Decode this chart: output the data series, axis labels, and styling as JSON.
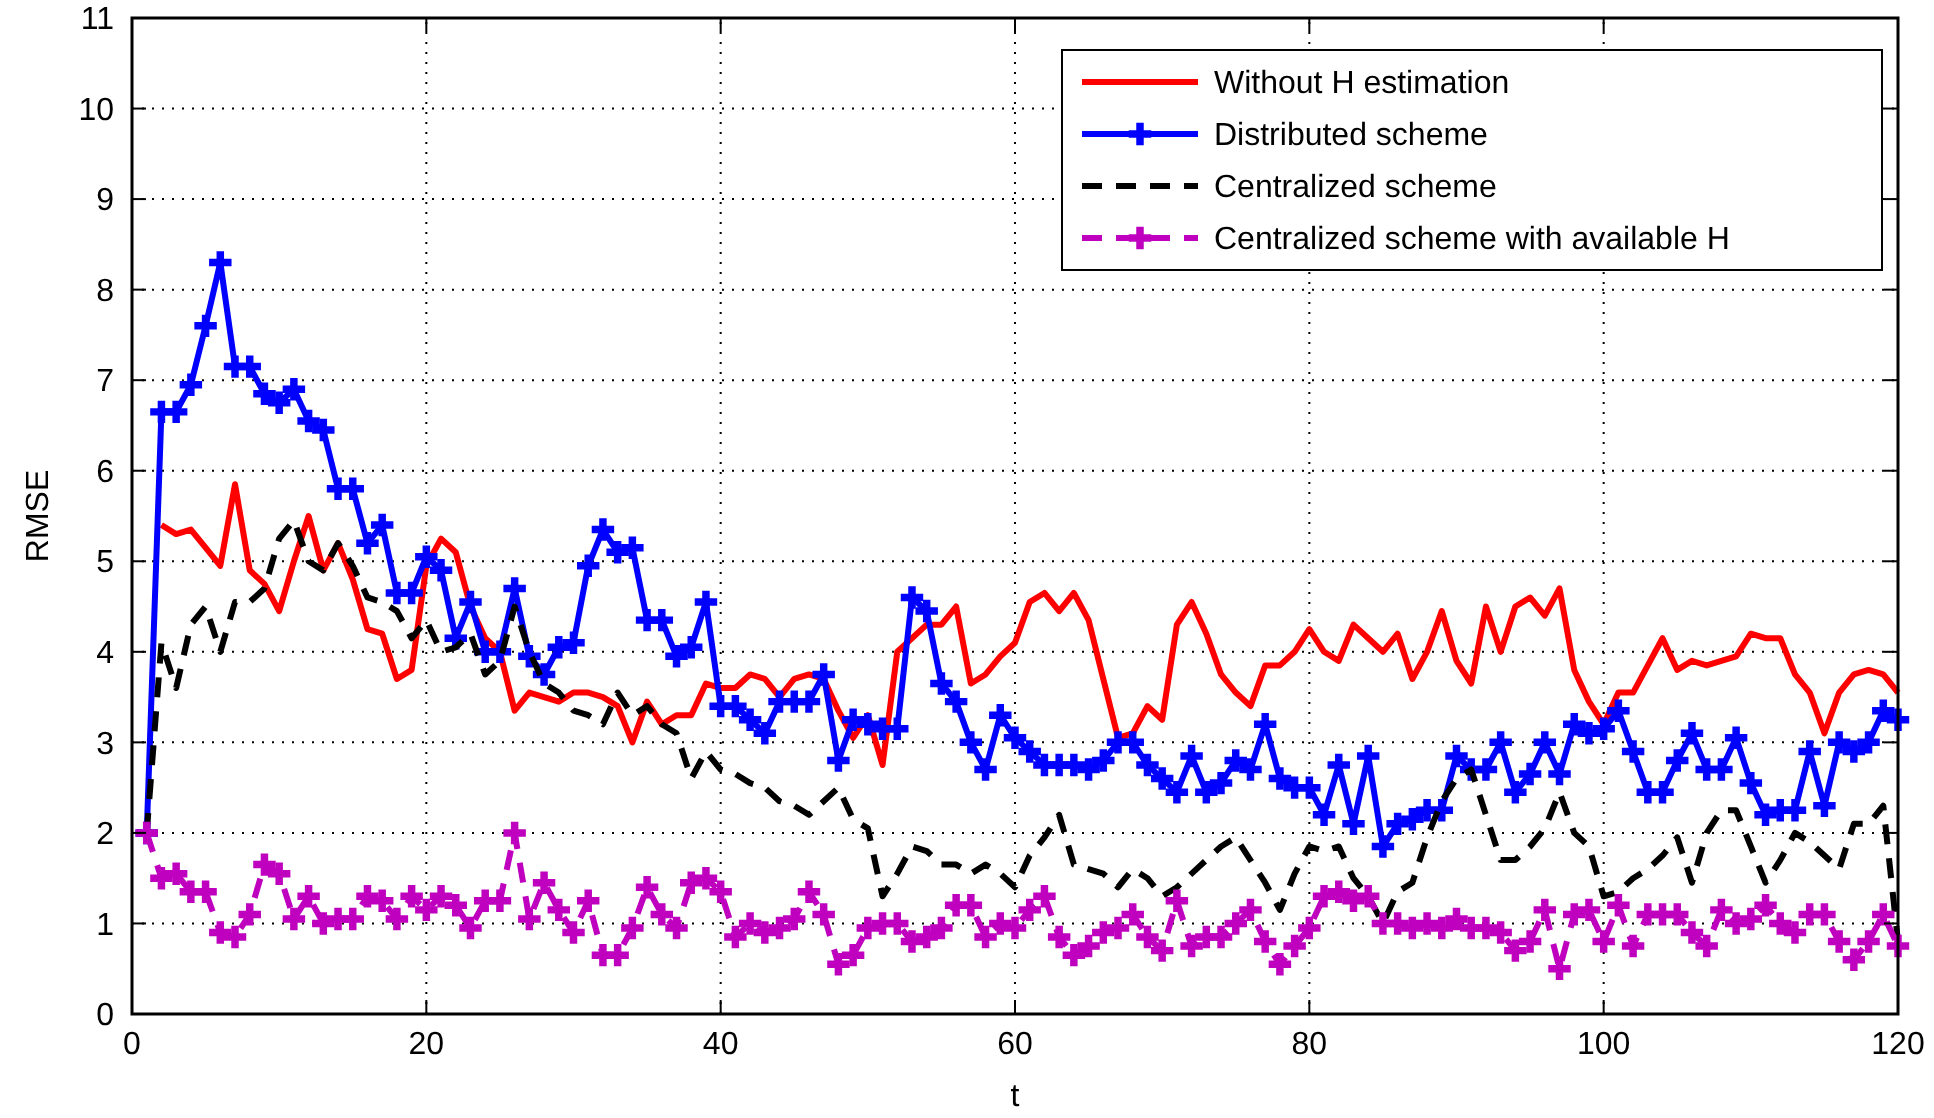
{
  "chart_data": {
    "type": "line",
    "xlabel": "t",
    "ylabel": "RMSE",
    "xlim": [
      0,
      120
    ],
    "ylim": [
      0,
      11
    ],
    "xticks": [
      0,
      20,
      40,
      60,
      80,
      100,
      120
    ],
    "yticks": [
      0,
      1,
      2,
      3,
      4,
      5,
      6,
      7,
      8,
      9,
      10,
      11
    ],
    "grid": true,
    "legend": "top right",
    "x": [
      1,
      2,
      3,
      4,
      5,
      6,
      7,
      8,
      9,
      10,
      11,
      12,
      13,
      14,
      15,
      16,
      17,
      18,
      19,
      20,
      21,
      22,
      23,
      24,
      25,
      26,
      27,
      28,
      29,
      30,
      31,
      32,
      33,
      34,
      35,
      36,
      37,
      38,
      39,
      40,
      41,
      42,
      43,
      44,
      45,
      46,
      47,
      48,
      49,
      50,
      51,
      52,
      53,
      54,
      55,
      56,
      57,
      58,
      59,
      60,
      61,
      62,
      63,
      64,
      65,
      66,
      67,
      68,
      69,
      70,
      71,
      72,
      73,
      74,
      75,
      76,
      77,
      78,
      79,
      80,
      81,
      82,
      83,
      84,
      85,
      86,
      87,
      88,
      89,
      90,
      91,
      92,
      93,
      94,
      95,
      96,
      97,
      98,
      99,
      100,
      101,
      102,
      103,
      104,
      105,
      106,
      107,
      108,
      109,
      110,
      111,
      112,
      113,
      114,
      115,
      116,
      117,
      118,
      119,
      120
    ],
    "series": [
      {
        "name": "Without H estimation",
        "color": "#ff0000",
        "marker": "none",
        "line_style": "solid",
        "values": [
          null,
          5.4,
          5.3,
          5.35,
          5.15,
          4.95,
          5.85,
          4.9,
          4.75,
          4.45,
          5.0,
          5.5,
          4.9,
          5.2,
          4.8,
          4.25,
          4.2,
          3.7,
          3.8,
          4.95,
          5.25,
          5.1,
          4.5,
          4.15,
          4.0,
          3.35,
          3.55,
          3.5,
          3.45,
          3.55,
          3.55,
          3.5,
          3.4,
          3.0,
          3.45,
          3.2,
          3.3,
          3.3,
          3.65,
          3.6,
          3.6,
          3.75,
          3.7,
          3.5,
          3.7,
          3.75,
          3.7,
          3.35,
          3.05,
          3.3,
          2.75,
          4.0,
          4.15,
          4.3,
          4.3,
          4.5,
          3.65,
          3.75,
          3.95,
          4.1,
          4.55,
          4.65,
          4.45,
          4.65,
          4.35,
          3.7,
          3.05,
          3.1,
          3.4,
          3.25,
          4.3,
          4.55,
          4.2,
          3.75,
          3.55,
          3.4,
          3.85,
          3.85,
          4.0,
          4.25,
          4.0,
          3.9,
          4.3,
          4.15,
          4.0,
          4.2,
          3.7,
          4.0,
          4.45,
          3.9,
          3.65,
          4.5,
          4.0,
          4.5,
          4.6,
          4.4,
          4.7,
          3.8,
          3.45,
          3.2,
          3.55,
          3.55,
          3.85,
          4.15,
          3.8,
          3.9,
          3.85,
          3.9,
          3.95,
          4.2,
          4.15,
          4.15,
          3.75,
          3.55,
          3.1,
          3.55,
          3.75,
          3.8,
          3.75,
          3.55
        ]
      },
      {
        "name": "Distributed scheme",
        "color": "#0000ff",
        "marker": "cross",
        "line_style": "solid",
        "values": [
          2.0,
          6.65,
          6.65,
          6.95,
          7.6,
          8.3,
          7.15,
          7.15,
          6.85,
          6.75,
          6.9,
          6.55,
          6.45,
          5.8,
          5.8,
          5.2,
          5.4,
          4.65,
          4.65,
          5.05,
          4.9,
          4.15,
          4.55,
          4.0,
          4.0,
          4.7,
          3.95,
          3.75,
          4.05,
          4.1,
          4.95,
          5.35,
          5.1,
          5.15,
          4.35,
          4.35,
          3.95,
          4.05,
          4.55,
          3.4,
          3.4,
          3.25,
          3.1,
          3.45,
          3.45,
          3.45,
          3.75,
          2.8,
          3.25,
          3.2,
          3.15,
          3.15,
          4.6,
          4.45,
          3.65,
          3.45,
          3.0,
          2.7,
          3.3,
          3.05,
          2.9,
          2.75,
          2.75,
          2.75,
          2.7,
          2.8,
          3.0,
          3.0,
          2.75,
          2.6,
          2.45,
          2.85,
          2.45,
          2.55,
          2.8,
          2.7,
          3.2,
          2.6,
          2.5,
          2.5,
          2.2,
          2.75,
          2.1,
          2.85,
          1.85,
          2.1,
          2.15,
          2.25,
          2.25,
          2.85,
          2.7,
          2.7,
          3.0,
          2.45,
          2.65,
          3.0,
          2.65,
          3.2,
          3.1,
          3.15,
          3.35,
          2.9,
          2.45,
          2.45,
          2.8,
          3.1,
          2.7,
          2.7,
          3.05,
          2.55,
          2.2,
          2.25,
          2.25,
          2.9,
          2.3,
          3.0,
          2.9,
          3.0,
          3.35,
          3.25
        ]
      },
      {
        "name": "Centralized scheme",
        "color": "#000000",
        "marker": "none",
        "line_style": "dashed",
        "values": [
          2.0,
          4.1,
          3.6,
          4.3,
          4.5,
          4.0,
          4.55,
          4.55,
          4.7,
          5.25,
          5.45,
          5.0,
          4.9,
          5.2,
          4.95,
          4.6,
          4.55,
          4.45,
          4.15,
          4.35,
          4.0,
          4.05,
          4.2,
          3.75,
          3.9,
          4.5,
          4.0,
          3.65,
          3.55,
          3.35,
          3.3,
          3.2,
          3.55,
          3.3,
          3.4,
          3.2,
          3.1,
          2.6,
          2.9,
          2.7,
          2.65,
          2.55,
          2.5,
          2.35,
          2.3,
          2.2,
          2.35,
          2.5,
          2.15,
          2.05,
          1.3,
          1.55,
          1.85,
          1.8,
          1.65,
          1.65,
          1.55,
          1.65,
          1.55,
          1.4,
          1.75,
          1.95,
          2.2,
          1.65,
          1.6,
          1.55,
          1.4,
          1.6,
          1.5,
          1.3,
          1.4,
          1.55,
          1.7,
          1.85,
          1.95,
          1.7,
          1.45,
          1.15,
          1.55,
          1.85,
          1.8,
          1.85,
          1.5,
          1.3,
          1.0,
          1.35,
          1.45,
          1.95,
          2.35,
          2.6,
          2.7,
          2.2,
          1.7,
          1.7,
          1.85,
          2.05,
          2.45,
          2.0,
          1.85,
          1.3,
          1.35,
          1.5,
          1.6,
          1.75,
          1.95,
          1.45,
          2.0,
          2.25,
          2.25,
          1.85,
          1.45,
          1.7,
          2.0,
          1.9,
          1.75,
          1.6,
          2.1,
          2.1,
          2.3,
          0.8
        ]
      },
      {
        "name": "Centralized scheme with available H",
        "color": "#bf00bf",
        "marker": "cross",
        "line_style": "dashed",
        "values": [
          2.0,
          1.5,
          1.55,
          1.35,
          1.35,
          0.9,
          0.85,
          1.1,
          1.65,
          1.55,
          1.05,
          1.3,
          1.0,
          1.05,
          1.05,
          1.3,
          1.25,
          1.05,
          1.3,
          1.15,
          1.3,
          1.2,
          0.95,
          1.25,
          1.25,
          2.0,
          1.05,
          1.45,
          1.15,
          0.9,
          1.25,
          0.65,
          0.65,
          0.95,
          1.4,
          1.1,
          0.95,
          1.45,
          1.5,
          1.35,
          0.85,
          1.0,
          0.9,
          0.95,
          1.05,
          1.35,
          1.1,
          0.55,
          0.65,
          0.95,
          1.0,
          1.0,
          0.8,
          0.85,
          0.95,
          1.2,
          1.2,
          0.85,
          1.0,
          0.95,
          1.15,
          1.3,
          0.85,
          0.65,
          0.75,
          0.9,
          0.95,
          1.1,
          0.85,
          0.7,
          1.25,
          0.75,
          0.85,
          0.85,
          1.0,
          1.15,
          0.8,
          0.55,
          0.75,
          0.95,
          1.3,
          1.35,
          1.25,
          1.3,
          1.0,
          1.0,
          0.95,
          1.0,
          0.95,
          1.05,
          0.95,
          0.95,
          0.9,
          0.7,
          0.8,
          1.15,
          0.5,
          1.1,
          1.15,
          0.8,
          1.2,
          0.75,
          1.1,
          1.1,
          1.1,
          0.9,
          0.75,
          1.15,
          1.0,
          1.05,
          1.2,
          1.0,
          0.9,
          1.1,
          1.1,
          0.8,
          0.6,
          0.8,
          1.1,
          0.75
        ]
      }
    ]
  }
}
